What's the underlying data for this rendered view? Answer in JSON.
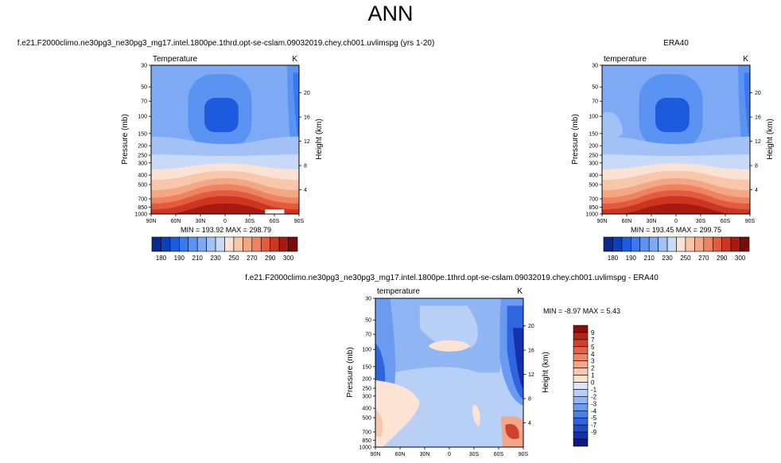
{
  "page_title": "ANN",
  "colors": {
    "temp_scale": [
      "#0a2a8c",
      "#0f3fb8",
      "#1c5ade",
      "#3a78ee",
      "#5a93f2",
      "#7ea9f4",
      "#a3c1f5",
      "#c9d9f8",
      "#fae3d5",
      "#f7c6ab",
      "#f4a784",
      "#ef8360",
      "#e35b3d",
      "#cc3620",
      "#a8190f",
      "#7a0b0b"
    ],
    "diff_scale": [
      "#0d1a80",
      "#1530a8",
      "#1f4ccc",
      "#2f66e0",
      "#4a80ea",
      "#6b9bf0",
      "#8fb5f3",
      "#b8cff6",
      "#dde7fa",
      "#fde3d3",
      "#f9c6ae",
      "#f4a68a",
      "#ee8566",
      "#e36448",
      "#d0422c",
      "#b5261a",
      "#8a0f0a"
    ]
  },
  "chart_data": [
    {
      "type": "heatmap",
      "title": "f.e21.F2000climo.ne30pg3_ne30pg3_mg17.intel.1800pe.1thrd.opt-se-cslam.09032019.chey.ch001.uvlimspg (yrs 1-20)",
      "left_label": "Temperature",
      "right_label": "K",
      "ylabel": "Pressure (mb)",
      "y2label": "Height (km)",
      "x_ticks": [
        "90N",
        "60N",
        "30N",
        "0",
        "30S",
        "60S",
        "90S"
      ],
      "y_ticks": [
        "30",
        "50",
        "70",
        "100",
        "150",
        "200",
        "250",
        "300",
        "400",
        "500",
        "700",
        "850",
        "1000"
      ],
      "y2_ticks": [
        "20",
        "16",
        "12",
        "8",
        "4"
      ],
      "stats": "MIN = 193.92   MAX = 298.79",
      "colorbar_labels": [
        "180",
        "190",
        "210",
        "230",
        "250",
        "270",
        "290",
        "300"
      ],
      "levels": [
        175,
        180,
        185,
        190,
        200,
        210,
        220,
        230,
        240,
        250,
        260,
        270,
        280,
        290,
        295,
        300
      ],
      "range": [
        193.92,
        298.79
      ]
    },
    {
      "type": "heatmap",
      "title": "ERA40",
      "left_label": "temperature",
      "right_label": "K",
      "ylabel": "Pressure (mb)",
      "y2label": "Height (km)",
      "x_ticks": [
        "90N",
        "60N",
        "30N",
        "0",
        "30S",
        "60S",
        "90S"
      ],
      "y_ticks": [
        "30",
        "50",
        "70",
        "100",
        "150",
        "200",
        "250",
        "300",
        "400",
        "500",
        "700",
        "850",
        "1000"
      ],
      "y2_ticks": [
        "20",
        "16",
        "12",
        "8",
        "4"
      ],
      "stats": "MIN = 193.45   MAX = 299.75",
      "colorbar_labels": [
        "180",
        "190",
        "210",
        "230",
        "250",
        "270",
        "290",
        "300"
      ],
      "levels": [
        175,
        180,
        185,
        190,
        200,
        210,
        220,
        230,
        240,
        250,
        260,
        270,
        280,
        290,
        295,
        300
      ],
      "range": [
        193.45,
        299.75
      ]
    },
    {
      "type": "heatmap",
      "title": "f.e21.F2000climo.ne30pg3_ne30pg3_mg17.intel.1800pe.1thrd.opt-se-cslam.09032019.chey.ch001.uvlimspg - ERA40",
      "left_label": "temperature",
      "right_label": "K",
      "ylabel": "Pressure (mb)",
      "y2label": "Height (km)",
      "x_ticks": [
        "90N",
        "60N",
        "30N",
        "0",
        "30S",
        "60S",
        "90S"
      ],
      "y_ticks": [
        "30",
        "50",
        "70",
        "100",
        "150",
        "200",
        "250",
        "300",
        "400",
        "500",
        "700",
        "850",
        "1000"
      ],
      "y2_ticks": [
        "20",
        "16",
        "12",
        "8",
        "4"
      ],
      "stats": "MIN = -8.97   MAX =  5.43",
      "colorbar_labels": [
        "9",
        "7",
        "5",
        "4",
        "3",
        "2",
        "1",
        "0",
        "-1",
        "-2",
        "-3",
        "-4",
        "-5",
        "-7",
        "-9"
      ],
      "levels": [
        -9,
        -7,
        -5,
        -4,
        -3,
        -2,
        -1,
        0,
        1,
        2,
        3,
        4,
        5,
        7,
        9
      ],
      "range": [
        -8.97,
        5.43
      ]
    }
  ]
}
